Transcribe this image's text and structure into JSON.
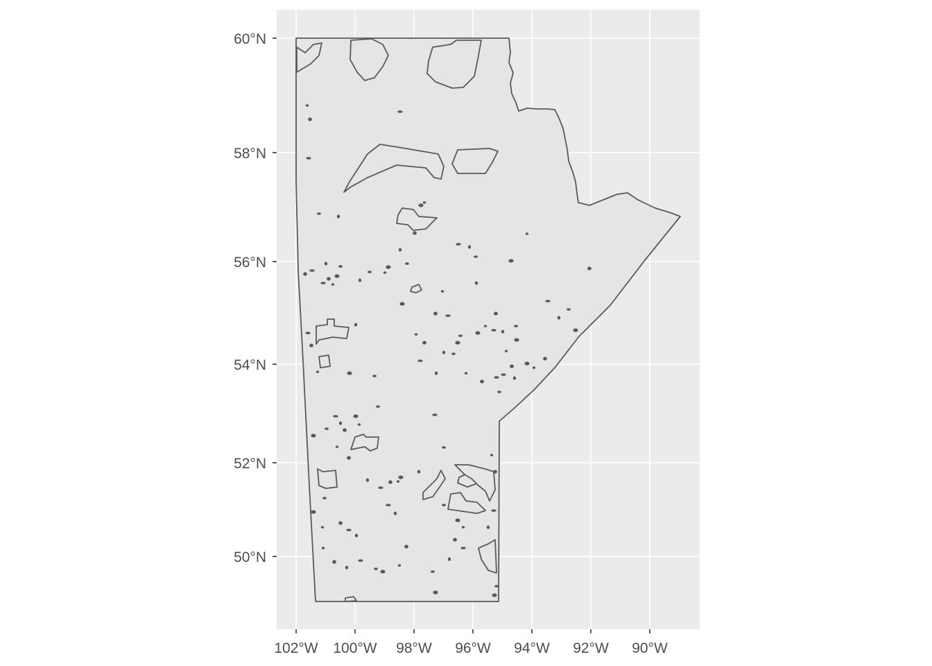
{
  "map": {
    "type": "choropleth-outline",
    "colors": {
      "panel_background": "#ebebeb",
      "grid": "#ffffff",
      "land_fill": "#e5e5e5",
      "outline": "#595959",
      "tick_text": "#4d4d4d"
    },
    "x_axis": {
      "ticks": [
        {
          "lon": -102,
          "label": "102°W"
        },
        {
          "lon": -100,
          "label": "100°W"
        },
        {
          "lon": -98,
          "label": "98°W"
        },
        {
          "lon": -96,
          "label": "96°W"
        },
        {
          "lon": -94,
          "label": "94°W"
        },
        {
          "lon": -92,
          "label": "92°W"
        },
        {
          "lon": -90,
          "label": "90°W"
        }
      ]
    },
    "y_axis": {
      "ticks": [
        {
          "lat": 50,
          "label": "50°N"
        },
        {
          "lat": 52,
          "label": "52°N"
        },
        {
          "lat": 54,
          "label": "54°N"
        },
        {
          "lat": 56,
          "label": "56°N"
        },
        {
          "lat": 58,
          "label": "58°N"
        },
        {
          "lat": 60,
          "label": "60°N"
        }
      ]
    },
    "grid": true
  }
}
